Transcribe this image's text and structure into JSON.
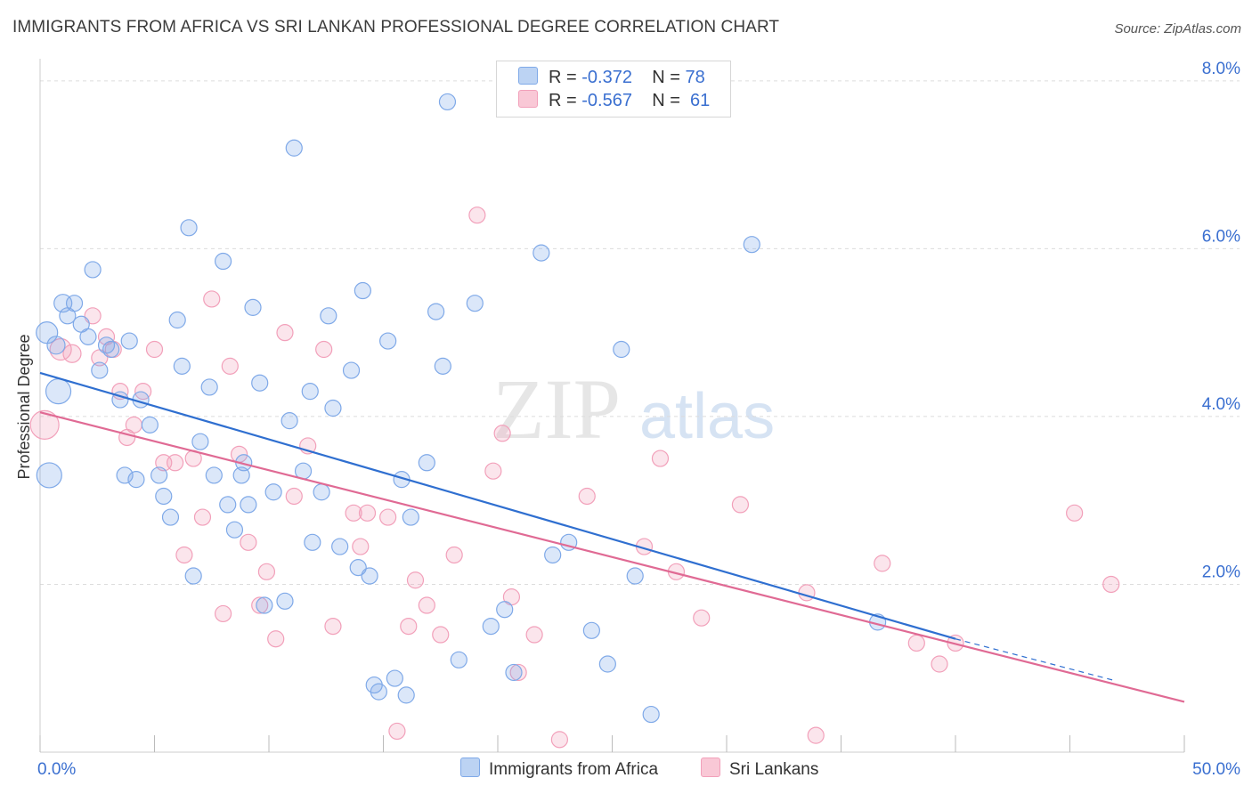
{
  "title": "IMMIGRANTS FROM AFRICA VS SRI LANKAN PROFESSIONAL DEGREE CORRELATION CHART",
  "source": "Source: ZipAtlas.com",
  "watermark": {
    "zip": "ZIP",
    "atlas": "atlas"
  },
  "legend": {
    "r_label": "R =",
    "n_label": "N =",
    "rows": [
      {
        "r": "-0.372",
        "n": "78"
      },
      {
        "r": "-0.567",
        "n": "61"
      }
    ]
  },
  "bottom_legend": [
    "Immigrants from Africa",
    "Sri Lankans"
  ],
  "chart_data": {
    "type": "scatter",
    "ylabel": "Professional Degree",
    "xlabel": "",
    "xlim": [
      0,
      50
    ],
    "ylim": [
      0,
      8.2
    ],
    "x_tick_labels": [
      "0.0%",
      "50.0%"
    ],
    "y_ticks": [
      2,
      4,
      6,
      8
    ],
    "y_tick_labels": [
      "2.0%",
      "4.0%",
      "6.0%",
      "8.0%"
    ],
    "grid": "horizontal dashed",
    "colors": {
      "africa": "#7fa9e8",
      "africa_line": "#2f6fd0",
      "srilanka": "#f2a0ba",
      "srilanka_line": "#e06a94"
    },
    "series": [
      {
        "name": "Immigrants from Africa",
        "trend": {
          "x1": 0,
          "y1": 4.52,
          "x2": 40,
          "y2": 1.35,
          "dash_to_x": 47,
          "dash_to_y": 0.85
        },
        "points": [
          [
            0.3,
            5.0,
            12
          ],
          [
            0.8,
            4.3,
            14
          ],
          [
            0.4,
            3.3,
            14
          ],
          [
            0.7,
            4.85,
            10
          ],
          [
            1.0,
            5.35,
            10
          ],
          [
            1.2,
            5.2,
            9
          ],
          [
            1.5,
            5.35,
            9
          ],
          [
            1.8,
            5.1,
            9
          ],
          [
            2.1,
            4.95,
            9
          ],
          [
            2.3,
            5.75,
            9
          ],
          [
            2.6,
            4.55,
            9
          ],
          [
            2.9,
            4.85,
            9
          ],
          [
            3.1,
            4.8,
            9
          ],
          [
            3.5,
            4.2,
            9
          ],
          [
            3.7,
            3.3,
            9
          ],
          [
            3.9,
            4.9,
            9
          ],
          [
            4.2,
            3.25,
            9
          ],
          [
            4.4,
            4.2,
            9
          ],
          [
            4.8,
            3.9,
            9
          ],
          [
            5.2,
            3.3,
            9
          ],
          [
            5.4,
            3.05,
            9
          ],
          [
            5.7,
            2.8,
            9
          ],
          [
            6.0,
            5.15,
            9
          ],
          [
            6.2,
            4.6,
            9
          ],
          [
            6.5,
            6.25,
            9
          ],
          [
            6.7,
            2.1,
            9
          ],
          [
            7.0,
            3.7,
            9
          ],
          [
            7.4,
            4.35,
            9
          ],
          [
            7.6,
            3.3,
            9
          ],
          [
            8.0,
            5.85,
            9
          ],
          [
            8.2,
            2.95,
            9
          ],
          [
            8.5,
            2.65,
            9
          ],
          [
            8.8,
            3.3,
            9
          ],
          [
            8.9,
            3.45,
            9
          ],
          [
            9.1,
            2.95,
            9
          ],
          [
            9.3,
            5.3,
            9
          ],
          [
            9.6,
            4.4,
            9
          ],
          [
            9.8,
            1.75,
            9
          ],
          [
            10.2,
            3.1,
            9
          ],
          [
            10.7,
            1.8,
            9
          ],
          [
            10.9,
            3.95,
            9
          ],
          [
            11.1,
            7.2,
            9
          ],
          [
            11.5,
            3.35,
            9
          ],
          [
            11.8,
            4.3,
            9
          ],
          [
            11.9,
            2.5,
            9
          ],
          [
            12.3,
            3.1,
            9
          ],
          [
            12.6,
            5.2,
            9
          ],
          [
            12.8,
            4.1,
            9
          ],
          [
            13.1,
            2.45,
            9
          ],
          [
            13.6,
            4.55,
            9
          ],
          [
            13.9,
            2.2,
            9
          ],
          [
            14.1,
            5.5,
            9
          ],
          [
            14.4,
            2.1,
            9
          ],
          [
            14.6,
            0.8,
            9
          ],
          [
            14.8,
            0.72,
            9
          ],
          [
            15.2,
            4.9,
            9
          ],
          [
            15.5,
            0.88,
            9
          ],
          [
            15.8,
            3.25,
            9
          ],
          [
            16.0,
            0.68,
            9
          ],
          [
            16.2,
            2.8,
            9
          ],
          [
            16.9,
            3.45,
            9
          ],
          [
            17.3,
            5.25,
            9
          ],
          [
            17.6,
            4.6,
            9
          ],
          [
            17.8,
            7.75,
            9
          ],
          [
            18.3,
            1.1,
            9
          ],
          [
            19.0,
            5.35,
            9
          ],
          [
            19.7,
            1.5,
            9
          ],
          [
            20.3,
            1.7,
            9
          ],
          [
            20.7,
            0.95,
            9
          ],
          [
            21.9,
            5.95,
            9
          ],
          [
            22.4,
            2.35,
            9
          ],
          [
            23.1,
            2.5,
            9
          ],
          [
            24.1,
            1.45,
            9
          ],
          [
            24.8,
            1.05,
            9
          ],
          [
            25.4,
            4.8,
            9
          ],
          [
            26.0,
            2.1,
            9
          ],
          [
            26.7,
            0.45,
            9
          ],
          [
            31.1,
            6.05,
            9
          ],
          [
            36.6,
            1.55,
            9
          ]
        ]
      },
      {
        "name": "Sri Lankans",
        "trend": {
          "x1": 0,
          "y1": 4.05,
          "x2": 50,
          "y2": 0.6
        },
        "points": [
          [
            0.2,
            3.9,
            16
          ],
          [
            0.9,
            4.8,
            12
          ],
          [
            1.4,
            4.75,
            10
          ],
          [
            2.3,
            5.2,
            9
          ],
          [
            2.6,
            4.7,
            9
          ],
          [
            2.9,
            4.95,
            9
          ],
          [
            3.2,
            4.8,
            9
          ],
          [
            3.5,
            4.3,
            9
          ],
          [
            3.8,
            3.75,
            9
          ],
          [
            4.1,
            3.9,
            9
          ],
          [
            4.5,
            4.3,
            9
          ],
          [
            5.0,
            4.8,
            9
          ],
          [
            5.4,
            3.45,
            9
          ],
          [
            5.9,
            3.45,
            9
          ],
          [
            6.3,
            2.35,
            9
          ],
          [
            6.7,
            3.5,
            9
          ],
          [
            7.1,
            2.8,
            9
          ],
          [
            7.5,
            5.4,
            9
          ],
          [
            8.0,
            1.65,
            9
          ],
          [
            8.3,
            4.6,
            9
          ],
          [
            8.7,
            3.55,
            9
          ],
          [
            9.1,
            2.5,
            9
          ],
          [
            9.6,
            1.75,
            9
          ],
          [
            9.9,
            2.15,
            9
          ],
          [
            10.3,
            1.35,
            9
          ],
          [
            10.7,
            5.0,
            9
          ],
          [
            11.1,
            3.05,
            9
          ],
          [
            11.7,
            3.65,
            9
          ],
          [
            12.4,
            4.8,
            9
          ],
          [
            12.8,
            1.5,
            9
          ],
          [
            13.7,
            2.85,
            9
          ],
          [
            14.0,
            2.45,
            9
          ],
          [
            14.3,
            2.85,
            9
          ],
          [
            15.2,
            2.8,
            9
          ],
          [
            15.6,
            0.25,
            9
          ],
          [
            16.1,
            1.5,
            9
          ],
          [
            16.4,
            2.05,
            9
          ],
          [
            16.9,
            1.75,
            9
          ],
          [
            17.5,
            1.4,
            9
          ],
          [
            18.1,
            2.35,
            9
          ],
          [
            19.1,
            6.4,
            9
          ],
          [
            19.8,
            3.35,
            9
          ],
          [
            20.2,
            3.8,
            9
          ],
          [
            20.6,
            1.85,
            9
          ],
          [
            20.9,
            0.95,
            9
          ],
          [
            21.6,
            1.4,
            9
          ],
          [
            22.7,
            0.15,
            9
          ],
          [
            23.9,
            3.05,
            9
          ],
          [
            26.4,
            2.45,
            9
          ],
          [
            27.1,
            3.5,
            9
          ],
          [
            27.8,
            2.15,
            9
          ],
          [
            28.9,
            1.6,
            9
          ],
          [
            30.6,
            2.95,
            9
          ],
          [
            33.5,
            1.9,
            9
          ],
          [
            33.9,
            0.2,
            9
          ],
          [
            36.8,
            2.25,
            9
          ],
          [
            38.3,
            1.3,
            9
          ],
          [
            39.3,
            1.05,
            9
          ],
          [
            40.0,
            1.3,
            9
          ],
          [
            45.2,
            2.85,
            9
          ],
          [
            46.8,
            2.0,
            9
          ]
        ]
      }
    ]
  }
}
